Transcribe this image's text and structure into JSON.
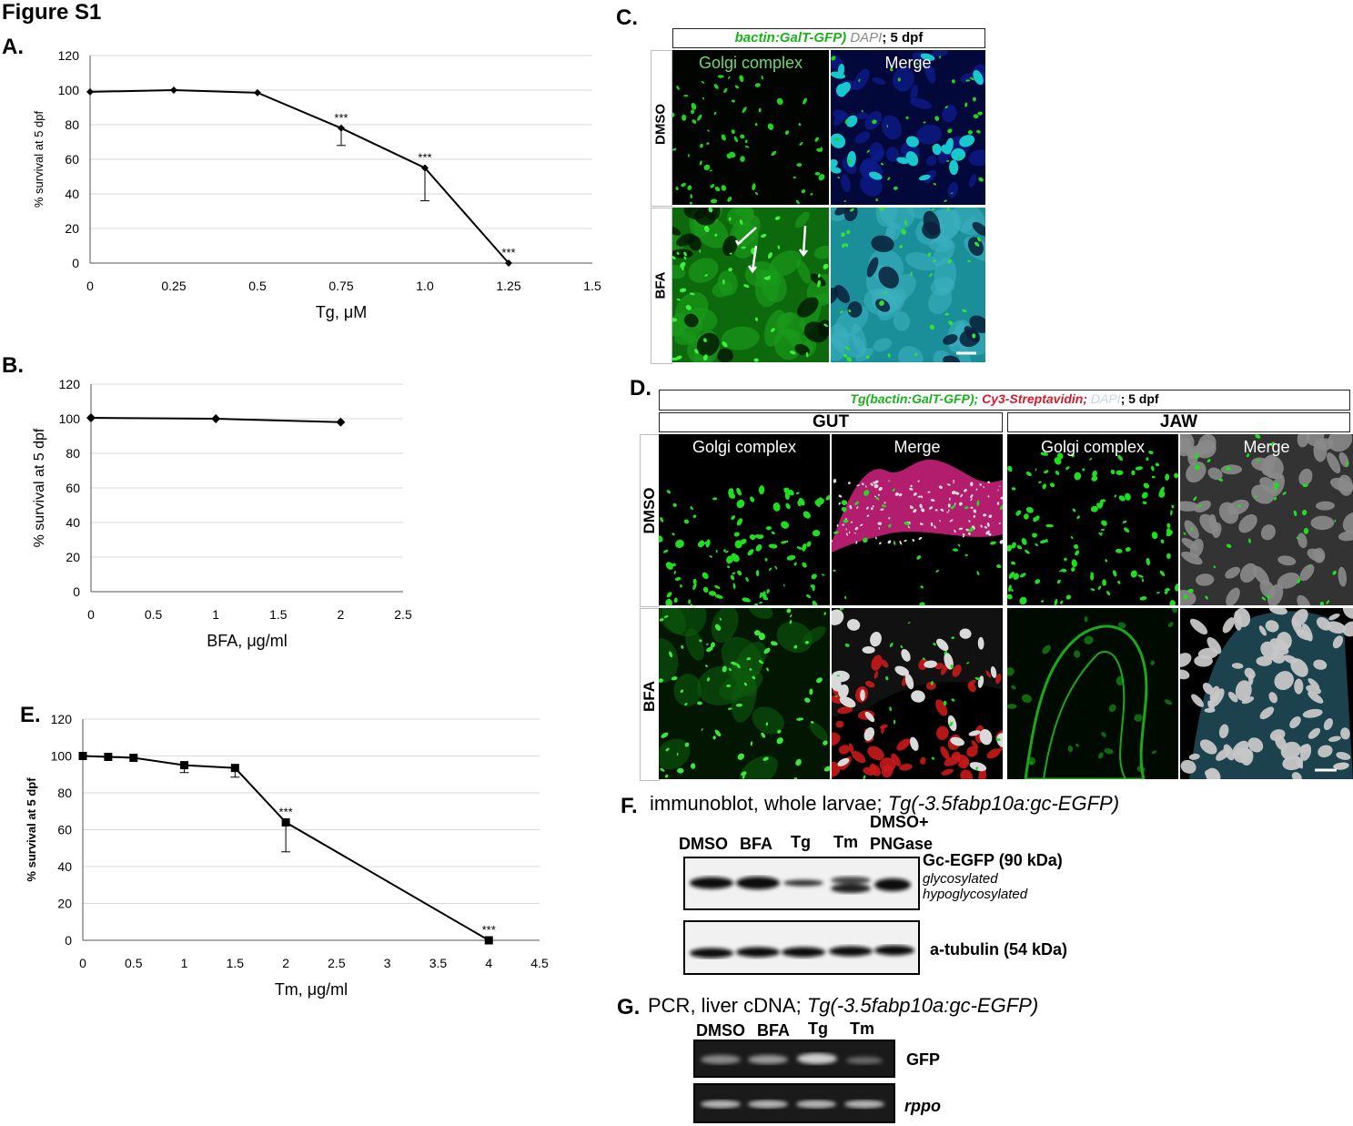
{
  "figure_title": "Figure S1",
  "panel_labels": {
    "a": "A.",
    "b": "B.",
    "c": "C.",
    "d": "D.",
    "e": "E.",
    "f": "F.",
    "g": "G."
  },
  "chart_data": [
    {
      "panel": "A.",
      "type": "line",
      "xlabel": "Tg, μM",
      "ylabel": "% survival at 5 dpf",
      "xlim": [
        0,
        1.5
      ],
      "ylim": [
        0,
        120
      ],
      "x_ticks": [
        "0",
        "0.25",
        "0.5",
        "0.75",
        "1.0",
        "1.25",
        "1.5"
      ],
      "y_ticks": [
        "0",
        "20",
        "40",
        "60",
        "80",
        "100",
        "120"
      ],
      "grid": true,
      "marker": "diamond",
      "x": [
        0,
        0.25,
        0.5,
        0.75,
        1.0,
        1.25
      ],
      "y": [
        99,
        100,
        98.5,
        78,
        55,
        0
      ],
      "error_down": [
        0,
        0,
        0,
        10,
        19,
        0
      ],
      "annotations": [
        {
          "x": 0.75,
          "text": "***"
        },
        {
          "x": 1.0,
          "text": "***"
        },
        {
          "x": 1.25,
          "text": "***"
        }
      ]
    },
    {
      "panel": "B.",
      "type": "line",
      "xlabel": "BFA, μg/ml",
      "ylabel": "% survival at 5 dpf",
      "xlim": [
        0,
        2.5
      ],
      "ylim": [
        0,
        120
      ],
      "x_ticks": [
        "0",
        "0.5",
        "1",
        "1.5",
        "2",
        "2.5"
      ],
      "y_ticks": [
        "0",
        "20",
        "40",
        "60",
        "80",
        "100",
        "120"
      ],
      "grid": true,
      "marker": "diamond",
      "x": [
        0,
        1,
        2
      ],
      "y": [
        100.5,
        100,
        98
      ],
      "error_down": [
        0,
        0,
        0
      ],
      "annotations": []
    },
    {
      "panel": "E.",
      "type": "line",
      "xlabel": "Tm, μg/ml",
      "ylabel": "% survival at 5 dpf",
      "xlim": [
        0,
        4.5
      ],
      "ylim": [
        0,
        120
      ],
      "x_ticks": [
        "0",
        "0.5",
        "1",
        "1.5",
        "2",
        "2.5",
        "3",
        "3.5",
        "4",
        "4.5"
      ],
      "y_ticks": [
        "0",
        "20",
        "40",
        "60",
        "80",
        "100",
        "120"
      ],
      "grid": true,
      "marker": "square",
      "x": [
        0,
        0.25,
        0.5,
        1,
        1.5,
        2,
        4
      ],
      "y": [
        100,
        99.5,
        99,
        95,
        93.5,
        64,
        0
      ],
      "error_down": [
        0,
        0,
        0,
        4,
        5,
        16,
        0
      ],
      "annotations": [
        {
          "x": 2,
          "text": "***"
        },
        {
          "x": 4,
          "text": "***"
        }
      ]
    }
  ],
  "panel_c": {
    "header": {
      "part1": "bactin:GalT-GFP)",
      "part2": "DAPI",
      "part3": "; 5 dpf"
    },
    "col_titles": [
      "Golgi complex",
      "Merge"
    ],
    "rows": [
      "DMSO",
      "BFA"
    ]
  },
  "panel_d": {
    "header": {
      "part1": "Tg(bactin:GalT-GFP);",
      "part2": "Cy3-Streptavidin;",
      "part3": "DAPI",
      "part4": "; 5 dpf"
    },
    "groups": [
      "GUT",
      "JAW"
    ],
    "col_titles": [
      "Golgi complex",
      "Merge",
      "Golgi complex",
      "Merge"
    ],
    "rows": [
      "DMSO",
      "BFA"
    ]
  },
  "panel_f": {
    "title_plain": "immunoblot, whole larvae;",
    "title_ital": "Tg(-3.5fabp10a:gc-EGFP)",
    "lanes": [
      "DMSO",
      "BFA",
      "Tg",
      "Tm",
      "PNGase"
    ],
    "lane_top": "DMSO+",
    "band1": "Gc-EGFP (90 kDa)",
    "band1_sub1": "glycosylated",
    "band1_sub2": "hypoglycosylated",
    "band2": "a-tubulin (54 kDa)"
  },
  "panel_g": {
    "title_plain": "PCR, liver cDNA;",
    "title_ital": "Tg(-3.5fabp10a:gc-EGFP)",
    "lanes": [
      "DMSO",
      "BFA",
      "Tg",
      "Tm"
    ],
    "band1": "GFP",
    "band2": "rppo"
  },
  "colors": {
    "gfp": "#19d419",
    "cy3": "#d7192b",
    "dapi": "#cfd8e8",
    "merge_blue": "#0f2aa8",
    "cyan": "#1fb3c8",
    "gray_text": "#8a8a8a"
  }
}
